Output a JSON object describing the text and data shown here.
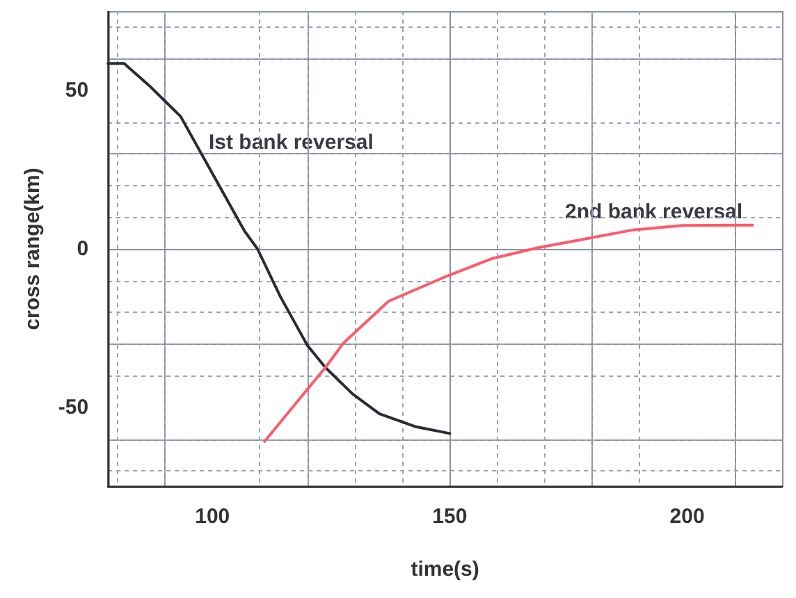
{
  "chart_data": {
    "type": "line",
    "xlabel": "time(s)",
    "ylabel": "cross range(km)",
    "xlim": [
      78,
      220
    ],
    "ylim": [
      -75,
      75
    ],
    "xticks": [
      {
        "value": 80,
        "label": null
      },
      {
        "value": 90,
        "label": null
      },
      100,
      {
        "value": 110,
        "label": null
      },
      {
        "value": 120,
        "label": null
      },
      {
        "value": 130,
        "label": null
      },
      {
        "value": 140,
        "label": null
      },
      150,
      {
        "value": 160,
        "label": null
      },
      {
        "value": 170,
        "label": null
      },
      {
        "value": 180,
        "label": null
      },
      {
        "value": 190,
        "label": null
      },
      200,
      {
        "value": 210,
        "label": null
      }
    ],
    "yticks": [
      {
        "value": -70,
        "label": null
      },
      {
        "value": -60,
        "label": null
      },
      -50,
      {
        "value": -40,
        "label": null
      },
      {
        "value": -30,
        "label": null
      },
      {
        "value": -20,
        "label": null
      },
      {
        "value": -10,
        "label": null
      },
      0,
      {
        "value": 10,
        "label": null
      },
      {
        "value": 20,
        "label": null
      },
      {
        "value": 30,
        "label": null
      },
      {
        "value": 40,
        "label": null
      },
      50,
      {
        "value": 60,
        "label": null
      },
      {
        "value": 70,
        "label": null
      }
    ],
    "grid": true,
    "marker": "none",
    "line_style": "solid",
    "series": [
      {
        "color": "#2a2a35",
        "x": [
          78,
          81.4,
          86.7,
          93.3,
          100,
          106.7,
          109.5,
          114.3,
          120,
          123.8,
          129.5,
          135.2,
          142.9,
          150
        ],
        "values": [
          58.5,
          58.5,
          51.5,
          41.8,
          23.8,
          5.8,
          0,
          -15,
          -30.4,
          -37.4,
          -45.7,
          -52,
          -56.1,
          -58.2
        ]
      },
      {
        "color": "#ff5a6a",
        "x": [
          111,
          116.2,
          123.8,
          127.6,
          137.1,
          149.5,
          159,
          168.6,
          179,
          188.6,
          199,
          213.8
        ],
        "values": [
          -60.7,
          -51.2,
          -37.4,
          -29.7,
          -16.5,
          -8.5,
          -3,
          0.4,
          3.3,
          6,
          7.4,
          7.5
        ]
      }
    ],
    "annotations": [
      "Ist bank reversal",
      "2nd bank reversal"
    ]
  }
}
